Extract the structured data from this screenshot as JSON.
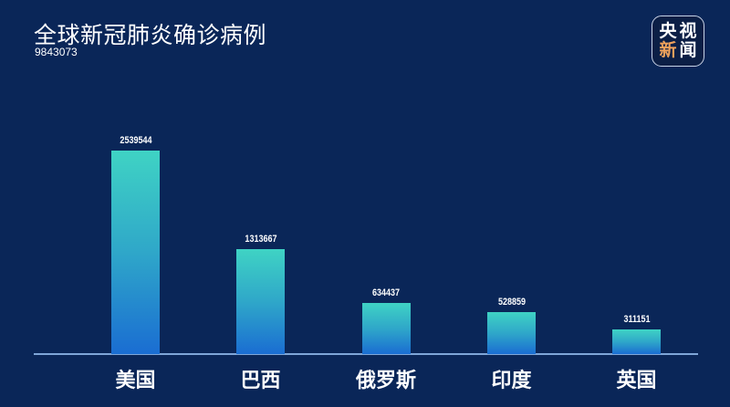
{
  "header": {
    "title": "全球新冠肺炎确诊病例",
    "total": "9843073"
  },
  "logo": {
    "chars": [
      "央",
      "视",
      "新",
      "闻"
    ],
    "accent_color": "#f0a25c"
  },
  "colors": {
    "background": "#0a2658",
    "bar_top": "#3fd3c4",
    "bar_bottom": "#1a6dd2",
    "axis": "#7fa6d8",
    "text": "#ffffff"
  },
  "chart_data": {
    "type": "bar",
    "title": "全球新冠肺炎确诊病例",
    "subtitle": "9843073",
    "categories": [
      "美国",
      "巴西",
      "俄罗斯",
      "印度",
      "英国"
    ],
    "values": [
      2539544,
      1313667,
      634437,
      528859,
      311151
    ],
    "value_labels": [
      "2539544",
      "1313667",
      "634437",
      "528859",
      "311151"
    ],
    "xlabel": "",
    "ylabel": "",
    "ylim": [
      0,
      2539544
    ],
    "grid": false,
    "legend": null
  }
}
